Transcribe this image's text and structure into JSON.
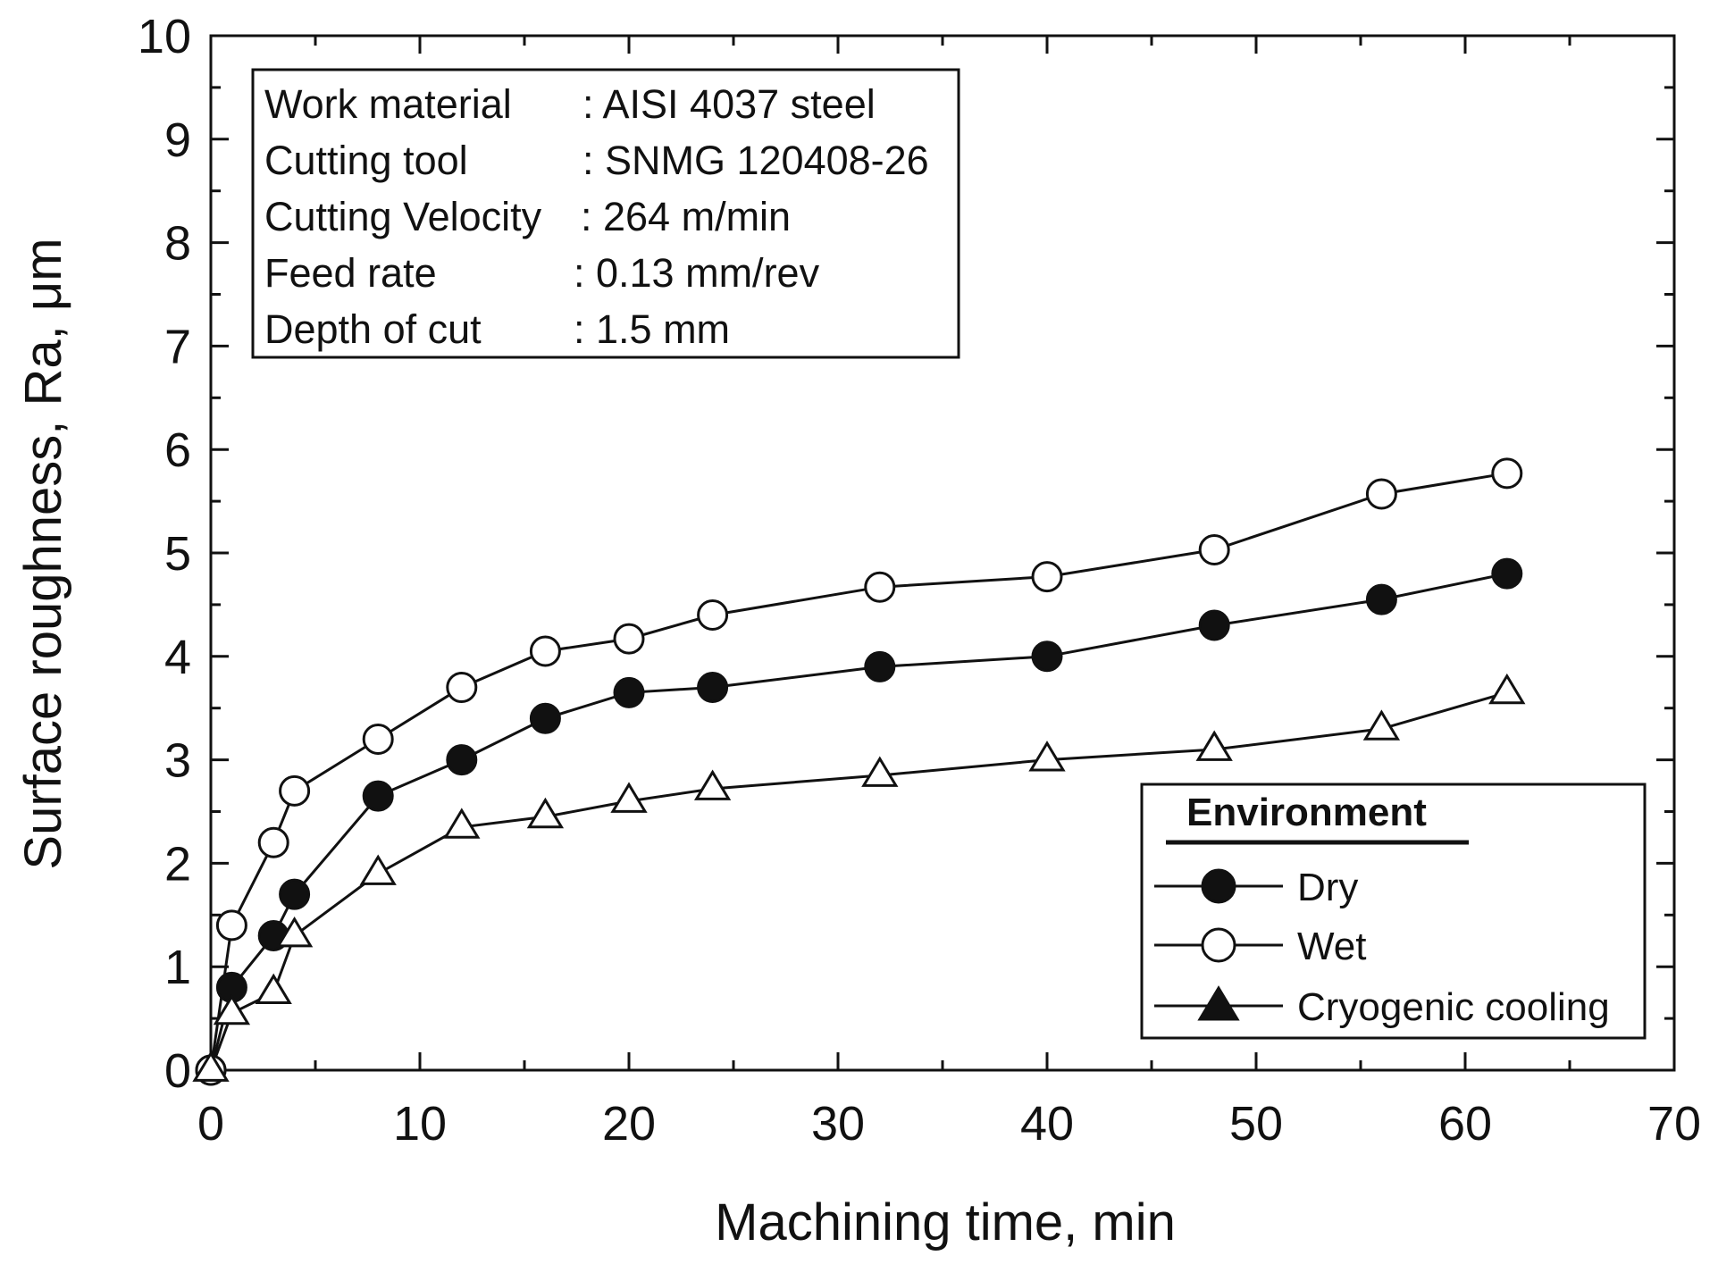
{
  "chart_data": {
    "type": "line",
    "xlabel": "Machining time, min",
    "ylabel": "Surface roughness, Ra, μm",
    "xlim": [
      0,
      70
    ],
    "ylim": [
      0,
      10
    ],
    "x_ticks": [
      "0",
      "10",
      "20",
      "30",
      "40",
      "50",
      "60",
      "70"
    ],
    "y_ticks": [
      "0",
      "1",
      "2",
      "3",
      "4",
      "5",
      "6",
      "7",
      "8",
      "9",
      "10"
    ],
    "grid": false,
    "info_box": {
      "rows": [
        {
          "label": "Work material",
          "value": ": AISI 4037 steel"
        },
        {
          "label": "Cutting tool",
          "value": ": SNMG 120408-26"
        },
        {
          "label": "Cutting Velocity",
          "value": ": 264 m/min"
        },
        {
          "label": "Feed rate",
          "value": ": 0.13 mm/rev"
        },
        {
          "label": "Depth of cut",
          "value": ": 1.5 mm"
        }
      ]
    },
    "legend": {
      "title": "Environment",
      "position": "bottom-right"
    },
    "series": [
      {
        "name": "Dry",
        "marker": "filled-circle",
        "x": [
          0,
          1,
          3,
          4,
          8,
          12,
          16,
          20,
          24,
          32,
          40,
          48,
          56,
          62
        ],
        "y": [
          0,
          0.8,
          1.3,
          1.7,
          2.65,
          3.0,
          3.4,
          3.65,
          3.7,
          3.9,
          4.0,
          4.3,
          4.55,
          4.8
        ]
      },
      {
        "name": "Wet",
        "marker": "open-circle",
        "x": [
          0,
          1,
          3,
          4,
          8,
          12,
          16,
          20,
          24,
          32,
          40,
          48,
          56,
          62
        ],
        "y": [
          0,
          1.4,
          2.2,
          2.7,
          3.2,
          3.7,
          4.05,
          4.17,
          4.4,
          4.67,
          4.77,
          5.03,
          5.57,
          5.77
        ]
      },
      {
        "name": "Cryogenic cooling",
        "marker": "open-triangle",
        "x": [
          0,
          1,
          3,
          4,
          8,
          12,
          16,
          20,
          24,
          32,
          40,
          48,
          56,
          62
        ],
        "y": [
          0,
          0.55,
          0.75,
          1.3,
          1.9,
          2.35,
          2.45,
          2.6,
          2.72,
          2.85,
          3.0,
          3.1,
          3.3,
          3.65
        ]
      }
    ]
  }
}
